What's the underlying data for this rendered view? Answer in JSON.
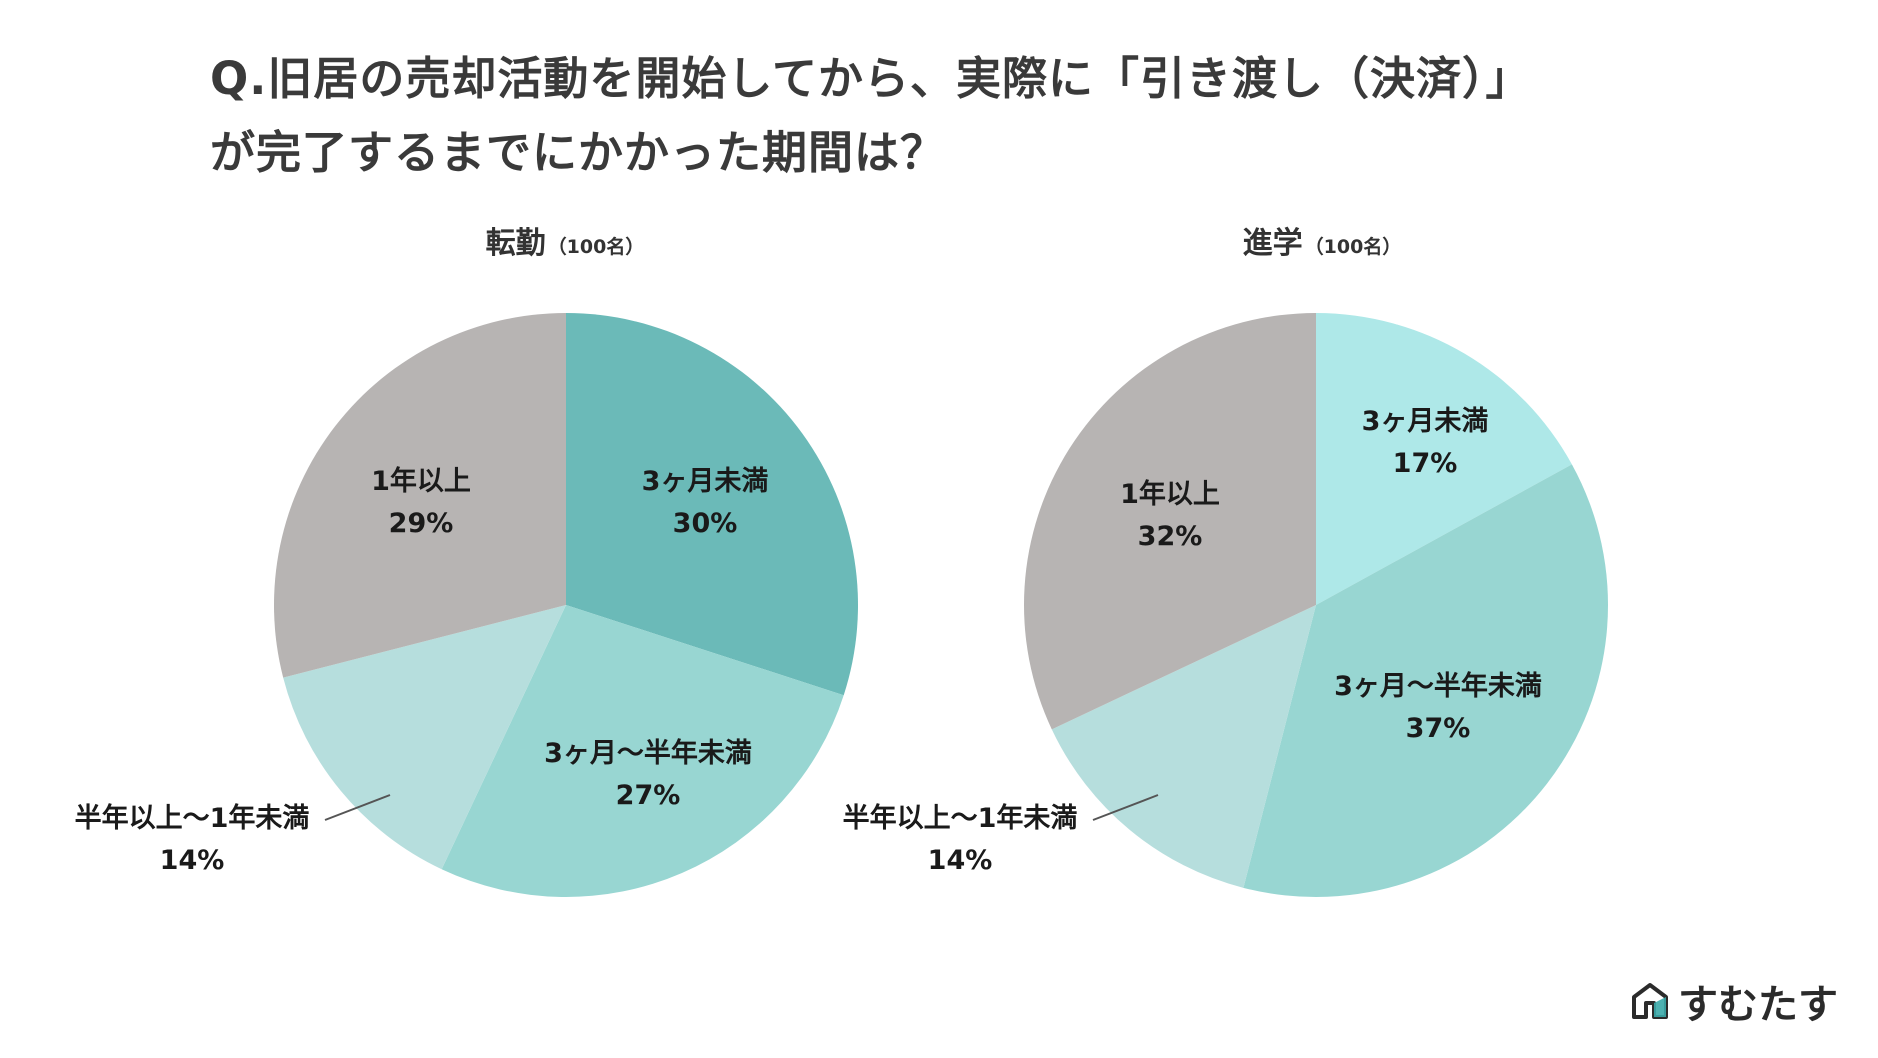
{
  "title": {
    "line1": "Q.旧居の売却活動を開始してから、実際に「引き渡し（決済）」",
    "line2": "が完了するまでにかかった期間は？"
  },
  "brand": {
    "name": "すむたす",
    "icon": "house-logo-icon"
  },
  "colors": {
    "under_3m": "#6bbab8",
    "m3_to_6m": "#98d6d2",
    "m6_to_1y": "#b6dedd",
    "over_1y": "#b7b4b3",
    "under_3m_light": "#aee8e8"
  },
  "chart_data": [
    {
      "type": "pie",
      "title": "転勤",
      "subtitle": "（100名）",
      "slices": [
        {
          "label": "3ヶ月未満",
          "value": 30,
          "display": "30%"
        },
        {
          "label": "3ヶ月〜半年未満",
          "value": 27,
          "display": "27%"
        },
        {
          "label": "半年以上〜1年未満",
          "value": 14,
          "display": "14%"
        },
        {
          "label": "1年以上",
          "value": 29,
          "display": "29%"
        }
      ]
    },
    {
      "type": "pie",
      "title": "進学",
      "subtitle": "（100名）",
      "slices": [
        {
          "label": "3ヶ月未満",
          "value": 17,
          "display": "17%"
        },
        {
          "label": "3ヶ月〜半年未満",
          "value": 37,
          "display": "37%"
        },
        {
          "label": "半年以上〜1年未満",
          "value": 14,
          "display": "14%"
        },
        {
          "label": "1年以上",
          "value": 32,
          "display": "32%"
        }
      ]
    }
  ]
}
